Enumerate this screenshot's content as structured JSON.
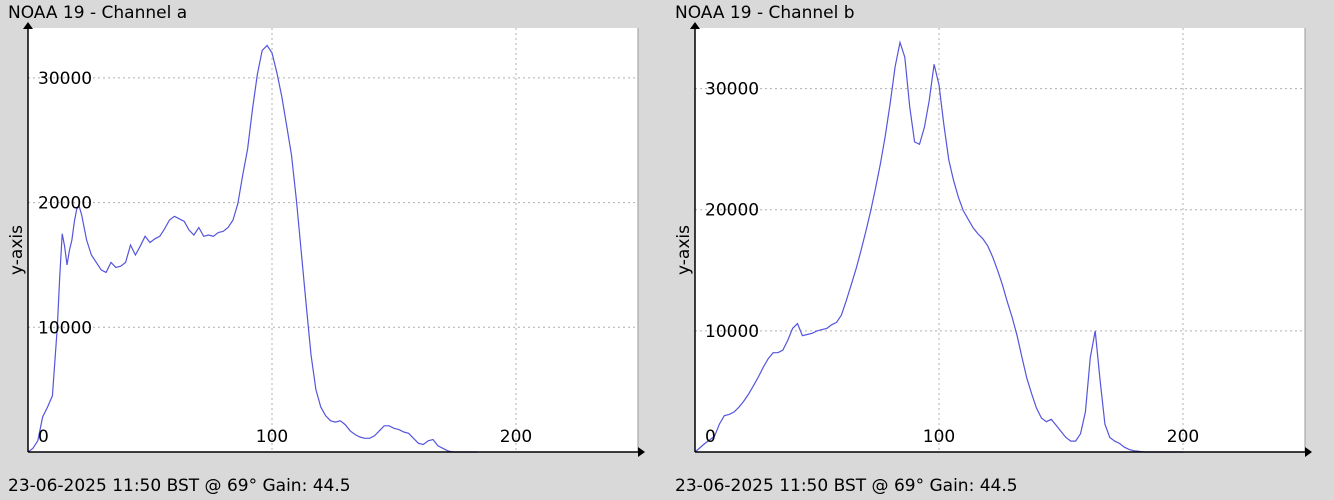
{
  "charts": [
    {
      "title": "NOAA 19 - Channel a",
      "footer": "23-06-2025 11:50 BST @ 69° Gain: 44.5",
      "line_color": "#5555dd"
    },
    {
      "title": "NOAA 19 - Channel b",
      "footer": "23-06-2025 11:50 BST @ 69° Gain: 44.5",
      "line_color": "#5555dd"
    }
  ],
  "chart_data": [
    {
      "type": "line",
      "title": "NOAA 19 - Channel a",
      "xlabel": "",
      "ylabel": "y-axis",
      "xlim": [
        0,
        250
      ],
      "ylim": [
        0,
        34000
      ],
      "xticks": [
        0,
        100,
        200
      ],
      "yticks": [
        10000,
        20000,
        30000
      ],
      "grid": true,
      "x": [
        0,
        2,
        4,
        6,
        8,
        10,
        12,
        13,
        14,
        15,
        16,
        17,
        18,
        19,
        20,
        21,
        22,
        24,
        26,
        28,
        30,
        32,
        34,
        36,
        38,
        40,
        42,
        44,
        46,
        48,
        50,
        52,
        54,
        56,
        58,
        60,
        62,
        64,
        66,
        68,
        70,
        72,
        74,
        76,
        78,
        80,
        82,
        84,
        86,
        88,
        90,
        92,
        94,
        96,
        98,
        100,
        102,
        104,
        106,
        108,
        110,
        112,
        114,
        116,
        118,
        120,
        122,
        124,
        126,
        128,
        130,
        132,
        134,
        136,
        138,
        140,
        142,
        144,
        146,
        148,
        150,
        152,
        154,
        156,
        158,
        160,
        162,
        164,
        166,
        168,
        170,
        172,
        174,
        176,
        178,
        180,
        182,
        184
      ],
      "y": [
        0,
        300,
        900,
        2800,
        3600,
        4500,
        10000,
        14000,
        17500,
        16500,
        15000,
        16200,
        17000,
        18500,
        19500,
        19700,
        19000,
        17000,
        15800,
        15200,
        14600,
        14400,
        15200,
        14800,
        14900,
        15200,
        16600,
        15800,
        16500,
        17300,
        16800,
        17100,
        17300,
        17900,
        18600,
        18900,
        18700,
        18500,
        17800,
        17400,
        18000,
        17300,
        17400,
        17300,
        17600,
        17700,
        18000,
        18600,
        19900,
        22200,
        24300,
        27500,
        30300,
        32200,
        32600,
        32000,
        30400,
        28500,
        26200,
        23800,
        20200,
        16000,
        11800,
        7800,
        5000,
        3600,
        2900,
        2500,
        2400,
        2500,
        2200,
        1700,
        1400,
        1200,
        1100,
        1100,
        1300,
        1700,
        2100,
        2100,
        1900,
        1800,
        1600,
        1500,
        1100,
        700,
        600,
        900,
        1000,
        500,
        300,
        100,
        0,
        0,
        0,
        0,
        0,
        0
      ]
    },
    {
      "type": "line",
      "title": "NOAA 19 - Channel b",
      "xlabel": "",
      "ylabel": "y-axis",
      "xlim": [
        0,
        250
      ],
      "ylim": [
        0,
        35000
      ],
      "xticks": [
        0,
        100,
        200
      ],
      "yticks": [
        10000,
        20000,
        30000
      ],
      "grid": true,
      "x": [
        0,
        4,
        8,
        10,
        12,
        14,
        16,
        18,
        20,
        22,
        24,
        26,
        28,
        30,
        32,
        34,
        36,
        38,
        40,
        42,
        44,
        46,
        48,
        50,
        52,
        54,
        56,
        58,
        60,
        62,
        64,
        66,
        68,
        70,
        72,
        74,
        76,
        78,
        80,
        82,
        84,
        86,
        88,
        90,
        92,
        94,
        96,
        98,
        100,
        102,
        104,
        106,
        108,
        110,
        112,
        114,
        116,
        118,
        120,
        122,
        124,
        126,
        128,
        130,
        132,
        134,
        136,
        138,
        140,
        142,
        144,
        146,
        148,
        150,
        152,
        154,
        156,
        158,
        160,
        162,
        164,
        166,
        168,
        170,
        172,
        174,
        176,
        178,
        180,
        182,
        184,
        186,
        188,
        190,
        192,
        194,
        196,
        198,
        200
      ],
      "y": [
        0,
        700,
        1300,
        2300,
        3000,
        3100,
        3300,
        3700,
        4200,
        4800,
        5500,
        6200,
        7000,
        7700,
        8200,
        8200,
        8400,
        9200,
        10200,
        10600,
        9600,
        9700,
        9800,
        10000,
        10100,
        10200,
        10500,
        10700,
        11300,
        12500,
        13800,
        15100,
        16600,
        18200,
        19900,
        21800,
        23800,
        26100,
        28800,
        31800,
        33800,
        32600,
        28500,
        25600,
        25400,
        26800,
        29000,
        32000,
        30300,
        27000,
        24100,
        22400,
        21000,
        19900,
        19200,
        18500,
        18000,
        17600,
        17000,
        16100,
        15000,
        13800,
        12400,
        11100,
        9600,
        7800,
        6100,
        4800,
        3600,
        2800,
        2500,
        2700,
        2200,
        1700,
        1200,
        900,
        900,
        1500,
        3300,
        7800,
        10000,
        6000,
        2300,
        1200,
        900,
        700,
        400,
        200,
        100,
        50,
        0,
        0,
        0,
        0,
        0,
        0,
        0,
        0,
        0
      ]
    }
  ]
}
